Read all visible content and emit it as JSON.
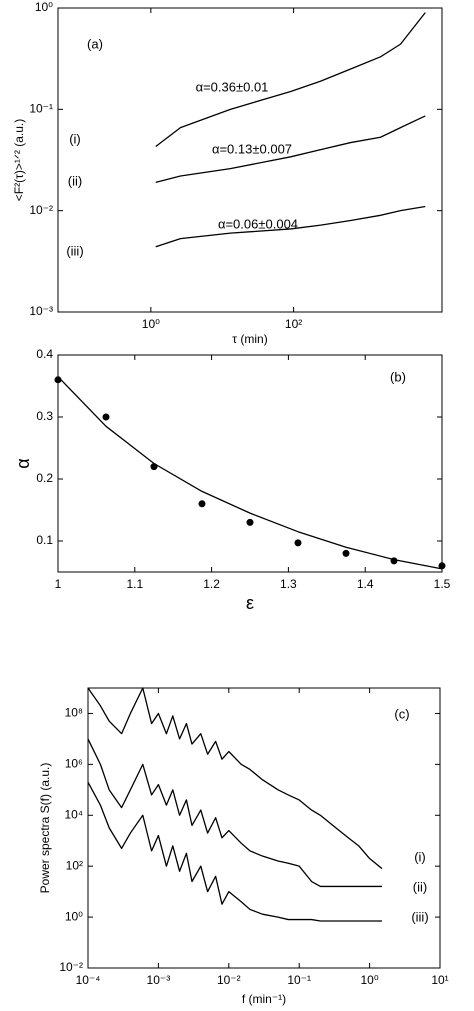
{
  "chart_data": [
    {
      "type": "line",
      "label": "(a)",
      "xlabel": "τ (min)",
      "ylabel": "<F²(τ)>¹ᐟ² (a.u.)",
      "xscale": "log",
      "yscale": "log",
      "xlim": [
        0.05,
        12000
      ],
      "ylim": [
        0.001,
        1
      ],
      "xticks": [
        {
          "value": 1,
          "label": "10⁰"
        },
        {
          "value": 100,
          "label": "10²"
        }
      ],
      "yticks": [
        {
          "value": 0.001,
          "label": "10⁻³"
        },
        {
          "value": 0.01,
          "label": "10⁻²"
        },
        {
          "value": 0.1,
          "label": "10⁻¹"
        },
        {
          "value": 1,
          "label": "10⁰"
        }
      ],
      "x": [
        1.17,
        2.6,
        13,
        91,
        240,
        630,
        1650,
        3150,
        7000
      ],
      "series": [
        {
          "color": "#000000",
          "values": [
            0.043,
            0.066,
            0.1,
            0.15,
            0.19,
            0.25,
            0.33,
            0.44,
            0.9
          ]
        },
        {
          "color": "#000000",
          "values": [
            0.019,
            0.022,
            0.026,
            0.034,
            0.04,
            0.047,
            0.053,
            0.066,
            0.086
          ]
        },
        {
          "color": "#000000",
          "values": [
            0.0044,
            0.0053,
            0.006,
            0.0066,
            0.0072,
            0.008,
            0.009,
            0.01,
            0.011
          ]
        }
      ],
      "annotations": [
        "α=0.36±0.01",
        "α=0.13±0.007",
        "α=0.06±0.004",
        "(i)",
        "(ii)",
        "(iii)"
      ]
    },
    {
      "type": "scatter",
      "label": "(b)",
      "xlabel": "ε",
      "ylabel": "α",
      "xlim": [
        1,
        1.5
      ],
      "ylim": [
        0.05,
        0.4
      ],
      "xticks": [
        1,
        1.1,
        1.2,
        1.3,
        1.4,
        1.5
      ],
      "yticks": [
        0.1,
        0.2,
        0.3,
        0.4
      ],
      "x": [
        1,
        1.0625,
        1.125,
        1.1875,
        1.25,
        1.3125,
        1.375,
        1.4375,
        1.5
      ],
      "series": [
        {
          "mode": "markers",
          "color": "#000000",
          "values": [
            0.36,
            0.3,
            0.22,
            0.16,
            0.13,
            0.097,
            0.08,
            0.068,
            0.06
          ]
        },
        {
          "mode": "line",
          "color": "#000000",
          "values": [
            0.365,
            0.285,
            0.225,
            0.18,
            0.145,
            0.115,
            0.09,
            0.07,
            0.055
          ]
        }
      ],
      "annotations": []
    },
    {
      "type": "line",
      "label": "(c)",
      "xlabel": "f (min⁻¹)",
      "ylabel": "Power spectra S(f) (a.u.)",
      "xscale": "log",
      "yscale": "log",
      "xlim": [
        0.0001,
        10
      ],
      "ylim": [
        0.01,
        1000000000
      ],
      "xticks": [
        {
          "value": 0.0001,
          "label": "10⁻⁴"
        },
        {
          "value": 0.001,
          "label": "10⁻³"
        },
        {
          "value": 0.01,
          "label": "10⁻²"
        },
        {
          "value": 0.1,
          "label": "10⁻¹"
        },
        {
          "value": 1,
          "label": "10⁰"
        },
        {
          "value": 10,
          "label": "10¹"
        }
      ],
      "yticks": [
        {
          "value": 0.01,
          "label": "10⁻²"
        },
        {
          "value": 1,
          "label": "10⁰"
        },
        {
          "value": 100,
          "label": "10²"
        },
        {
          "value": 10000,
          "label": "10⁴"
        },
        {
          "value": 1000000,
          "label": "10⁶"
        },
        {
          "value": 100000000,
          "label": "10⁸"
        }
      ],
      "x": [
        0.0001,
        0.00015,
        0.0002,
        0.0003,
        0.0004,
        0.0006,
        0.0008,
        0.001,
        0.0013,
        0.0016,
        0.002,
        0.0025,
        0.003,
        0.004,
        0.005,
        0.0065,
        0.008,
        0.01,
        0.015,
        0.02,
        0.03,
        0.05,
        0.07,
        0.1,
        0.15,
        0.2,
        0.3,
        0.5,
        0.7,
        1,
        1.5
      ],
      "series": [
        {
          "color": "#000000",
          "values": [
            1000000000.0,
            200000000.0,
            50000000.0,
            16000000.0,
            100000000.0,
            1000000000.0,
            40000000.0,
            100000000.0,
            16000000.0,
            80000000.0,
            10000000.0,
            40000000.0,
            6300000.0,
            16000000.0,
            2500000.0,
            8000000.0,
            1600000.0,
            3200000.0,
            1000000.0,
            630000.0,
            250000.0,
            100000.0,
            63000.0,
            40000.0,
            16000.0,
            10000.0,
            4000.0,
            1300.0,
            630,
            200,
            80
          ]
        },
        {
          "color": "#000000",
          "values": [
            10000000.0,
            1000000.0,
            100000.0,
            20000.0,
            100000.0,
            1000000.0,
            63000.0,
            160000.0,
            25000.0,
            100000.0,
            10000.0,
            40000.0,
            4000.0,
            16000.0,
            2000.0,
            8000.0,
            1300.0,
            2500.0,
            800,
            400,
            250,
            160,
            130,
            100,
            25,
            16,
            16,
            16,
            16,
            16,
            16
          ]
        },
        {
          "color": "#000000",
          "values": [
            200000.0,
            25000.0,
            3200.0,
            500,
            2000.0,
            10000.0,
            400,
            1600.0,
            100,
            630,
            63,
            320,
            25,
            100,
            10,
            40,
            3.2,
            10,
            4,
            2,
            1.3,
            1,
            0.8,
            0.8,
            0.8,
            0.7,
            0.7,
            0.7,
            0.7,
            0.7,
            0.7
          ]
        }
      ],
      "annotations": [
        "(i)",
        "(ii)",
        "(iii)"
      ]
    }
  ]
}
